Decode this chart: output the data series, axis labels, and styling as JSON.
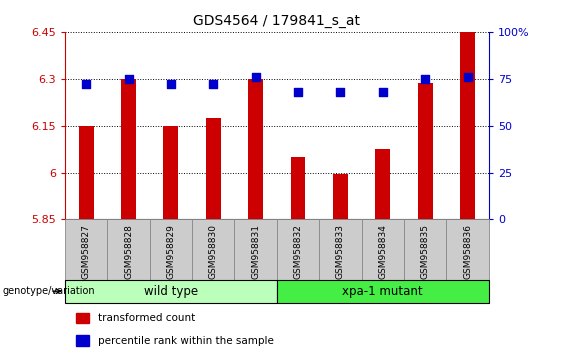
{
  "title": "GDS4564 / 179841_s_at",
  "samples": [
    "GSM958827",
    "GSM958828",
    "GSM958829",
    "GSM958830",
    "GSM958831",
    "GSM958832",
    "GSM958833",
    "GSM958834",
    "GSM958835",
    "GSM958836"
  ],
  "transformed_count": [
    6.15,
    6.3,
    6.15,
    6.175,
    6.3,
    6.05,
    5.995,
    6.075,
    6.285,
    6.45
  ],
  "percentile_rank": [
    72,
    75,
    72,
    72,
    76,
    68,
    68,
    68,
    75,
    76
  ],
  "ylim_left": [
    5.85,
    6.45
  ],
  "ylim_right": [
    0,
    100
  ],
  "yticks_left": [
    5.85,
    6.0,
    6.15,
    6.3,
    6.45
  ],
  "ytick_labels_left": [
    "5.85",
    "6",
    "6.15",
    "6.3",
    "6.45"
  ],
  "yticks_right": [
    0,
    25,
    50,
    75,
    100
  ],
  "ytick_labels_right": [
    "0",
    "25",
    "50",
    "75",
    "100%"
  ],
  "bar_color": "#cc0000",
  "dot_color": "#0000cc",
  "groups": [
    {
      "label": "wild type",
      "start": 0,
      "end": 4,
      "color": "#bbffbb"
    },
    {
      "label": "xpa-1 mutant",
      "start": 5,
      "end": 9,
      "color": "#44ee44"
    }
  ],
  "genotype_label": "genotype/variation",
  "legend_items": [
    {
      "color": "#cc0000",
      "label": "transformed count"
    },
    {
      "color": "#0000cc",
      "label": "percentile rank within the sample"
    }
  ],
  "grid_color": "black",
  "grid_style": "dotted",
  "tick_label_color_left": "#cc0000",
  "tick_label_color_right": "#0000cc",
  "bar_width": 0.35,
  "dot_size": 28,
  "background_color": "#ffffff",
  "plot_bg_color": "#ffffff",
  "xticklabel_bg": "#cccccc"
}
